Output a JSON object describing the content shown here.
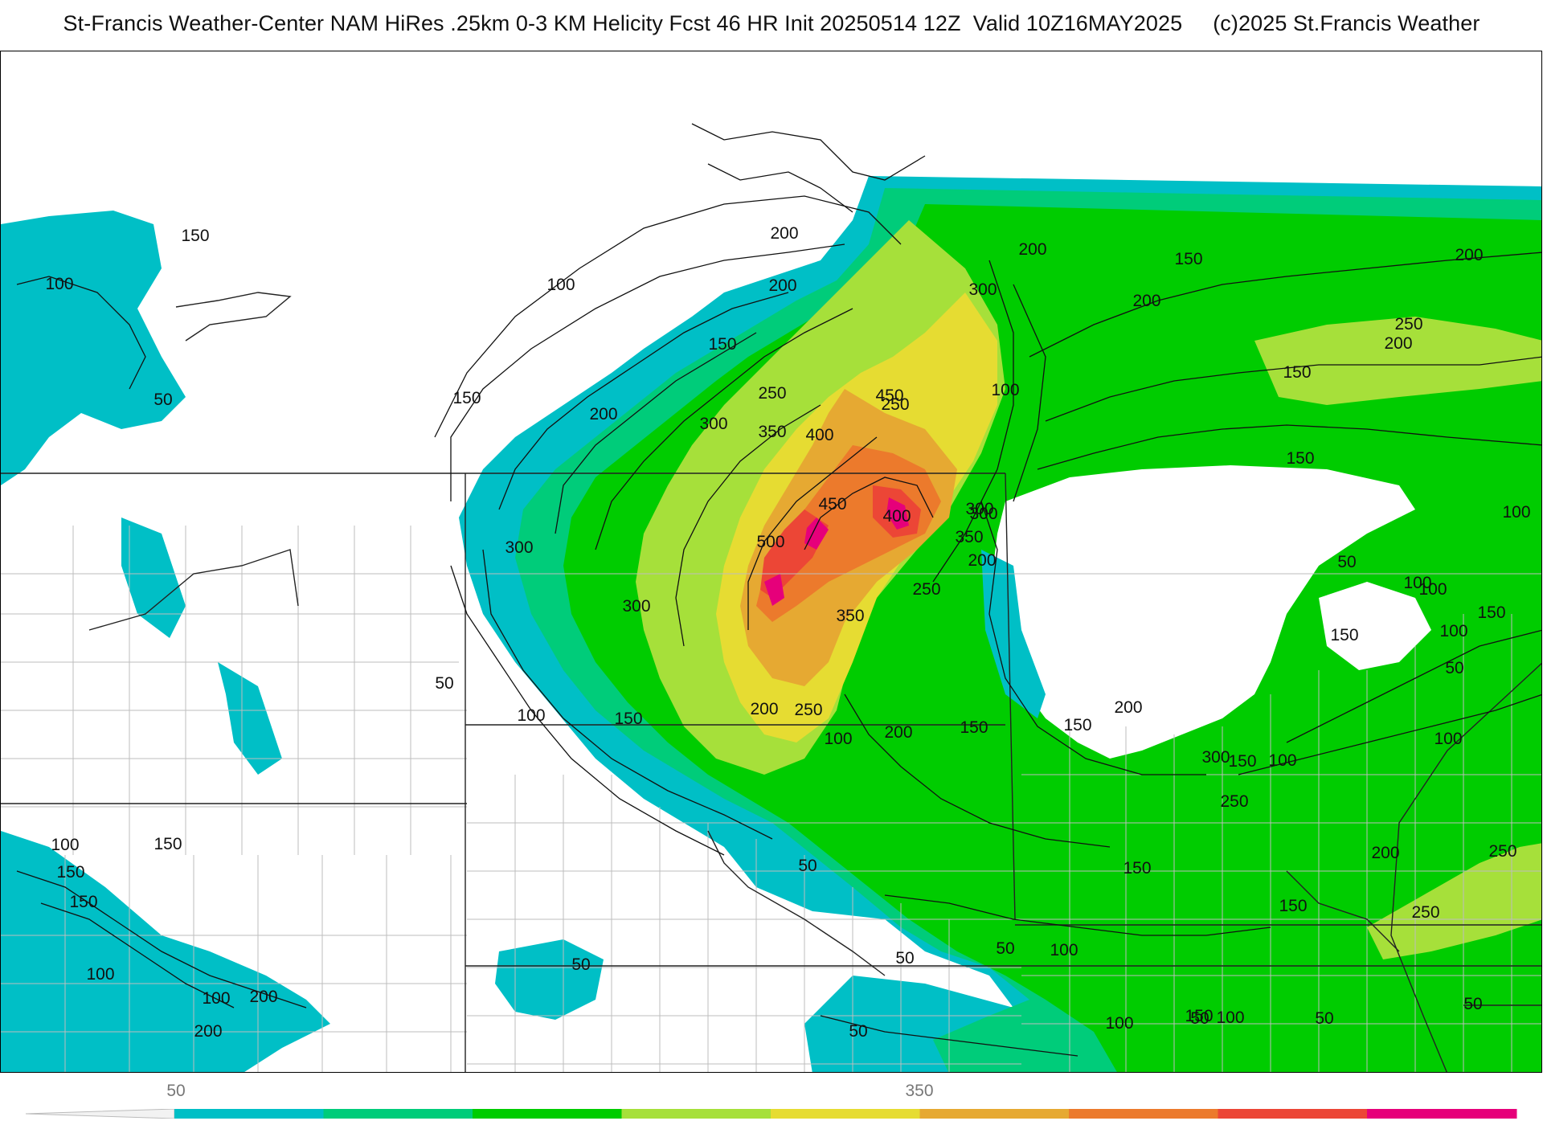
{
  "title": "St-Francis Weather-Center NAM HiRes .25km 0-3 KM Helicity Fcst 46 HR Init 20250514 12Z  Valid 10Z16MAY2025     (c)2025 St.Francis Weather",
  "contour_labels": [
    "50",
    "100",
    "150",
    "200",
    "250",
    "300",
    "350",
    "400",
    "450",
    "500"
  ],
  "colorbar": {
    "tick_labels": [
      "50",
      "350"
    ],
    "colors": [
      "#00bfc6",
      "#00cc7a",
      "#00cc00",
      "#a6e03a",
      "#e6dc32",
      "#e6a932",
      "#ec7a2c",
      "#ec4636",
      "#e6007a"
    ]
  },
  "map_labels": [
    "100",
    "50",
    "150",
    "100",
    "200",
    "150",
    "200",
    "300",
    "200",
    "150",
    "200",
    "200",
    "250",
    "200",
    "150",
    "250",
    "300",
    "450",
    "350",
    "400",
    "300",
    "200",
    "150",
    "100",
    "250",
    "450",
    "400",
    "300",
    "350",
    "200",
    "250",
    "500",
    "300",
    "350",
    "300",
    "250",
    "150",
    "100",
    "50",
    "200",
    "100",
    "150",
    "200",
    "150",
    "200",
    "300",
    "250",
    "100",
    "150",
    "100",
    "50",
    "100",
    "150",
    "100",
    "150",
    "50",
    "100",
    "150",
    "100",
    "50",
    "150",
    "200",
    "250",
    "250",
    "150",
    "50",
    "100",
    "50",
    "50",
    "100",
    "50",
    "150",
    "50",
    "50",
    "100",
    "50",
    "100",
    "150",
    "100",
    "150",
    "100",
    "200",
    "200",
    "150"
  ]
}
